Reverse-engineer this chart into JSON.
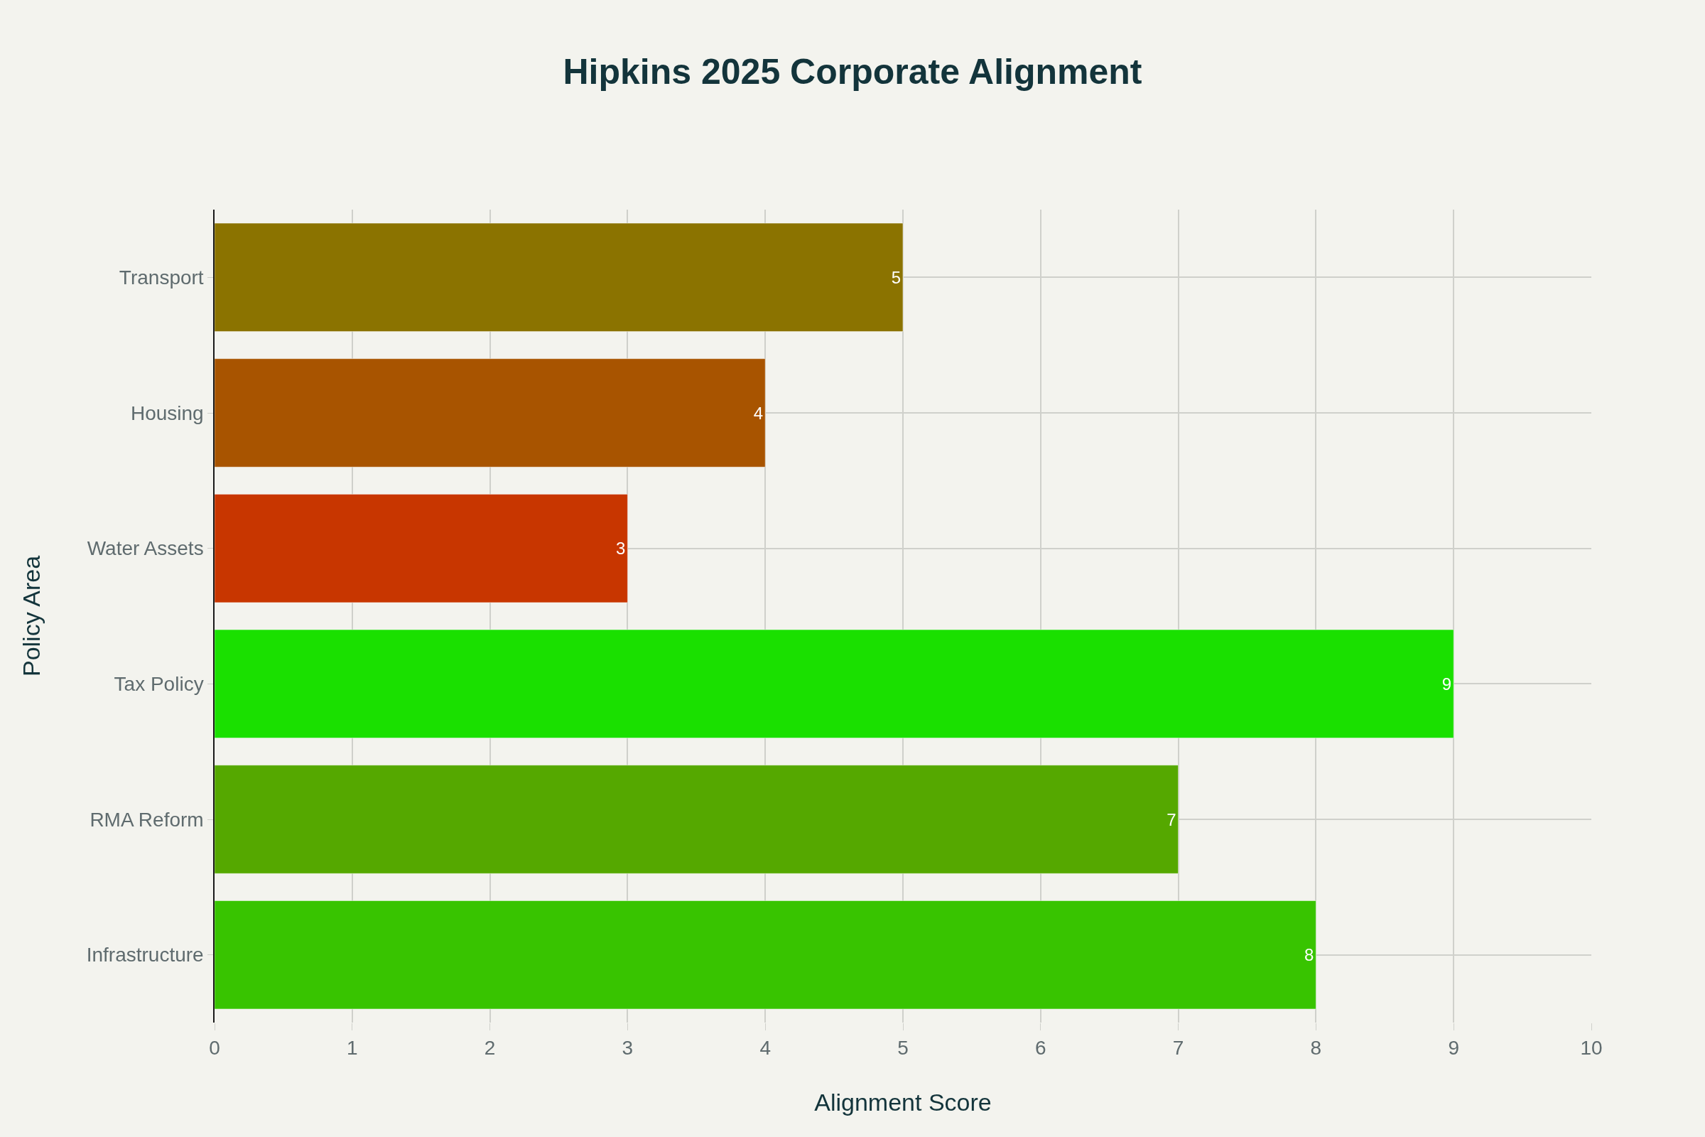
{
  "chart_data": {
    "type": "bar",
    "orientation": "horizontal",
    "title": "Hipkins 2025 Corporate Alignment",
    "xlabel": "Alignment Score",
    "ylabel": "Policy Area",
    "categories": [
      "Transport",
      "Housing",
      "Water Assets",
      "Tax Policy",
      "RMA Reform",
      "Infrastructure"
    ],
    "values": [
      5,
      4,
      3,
      9,
      7,
      8
    ],
    "colors": [
      "#8b7300",
      "#a85400",
      "#c83600",
      "#1ae000",
      "#55a800",
      "#38c400"
    ],
    "xlim": [
      0,
      10
    ],
    "xticks": [
      0,
      1,
      2,
      3,
      4,
      5,
      6,
      7,
      8,
      9,
      10
    ],
    "grid": true,
    "data_labels": true
  }
}
